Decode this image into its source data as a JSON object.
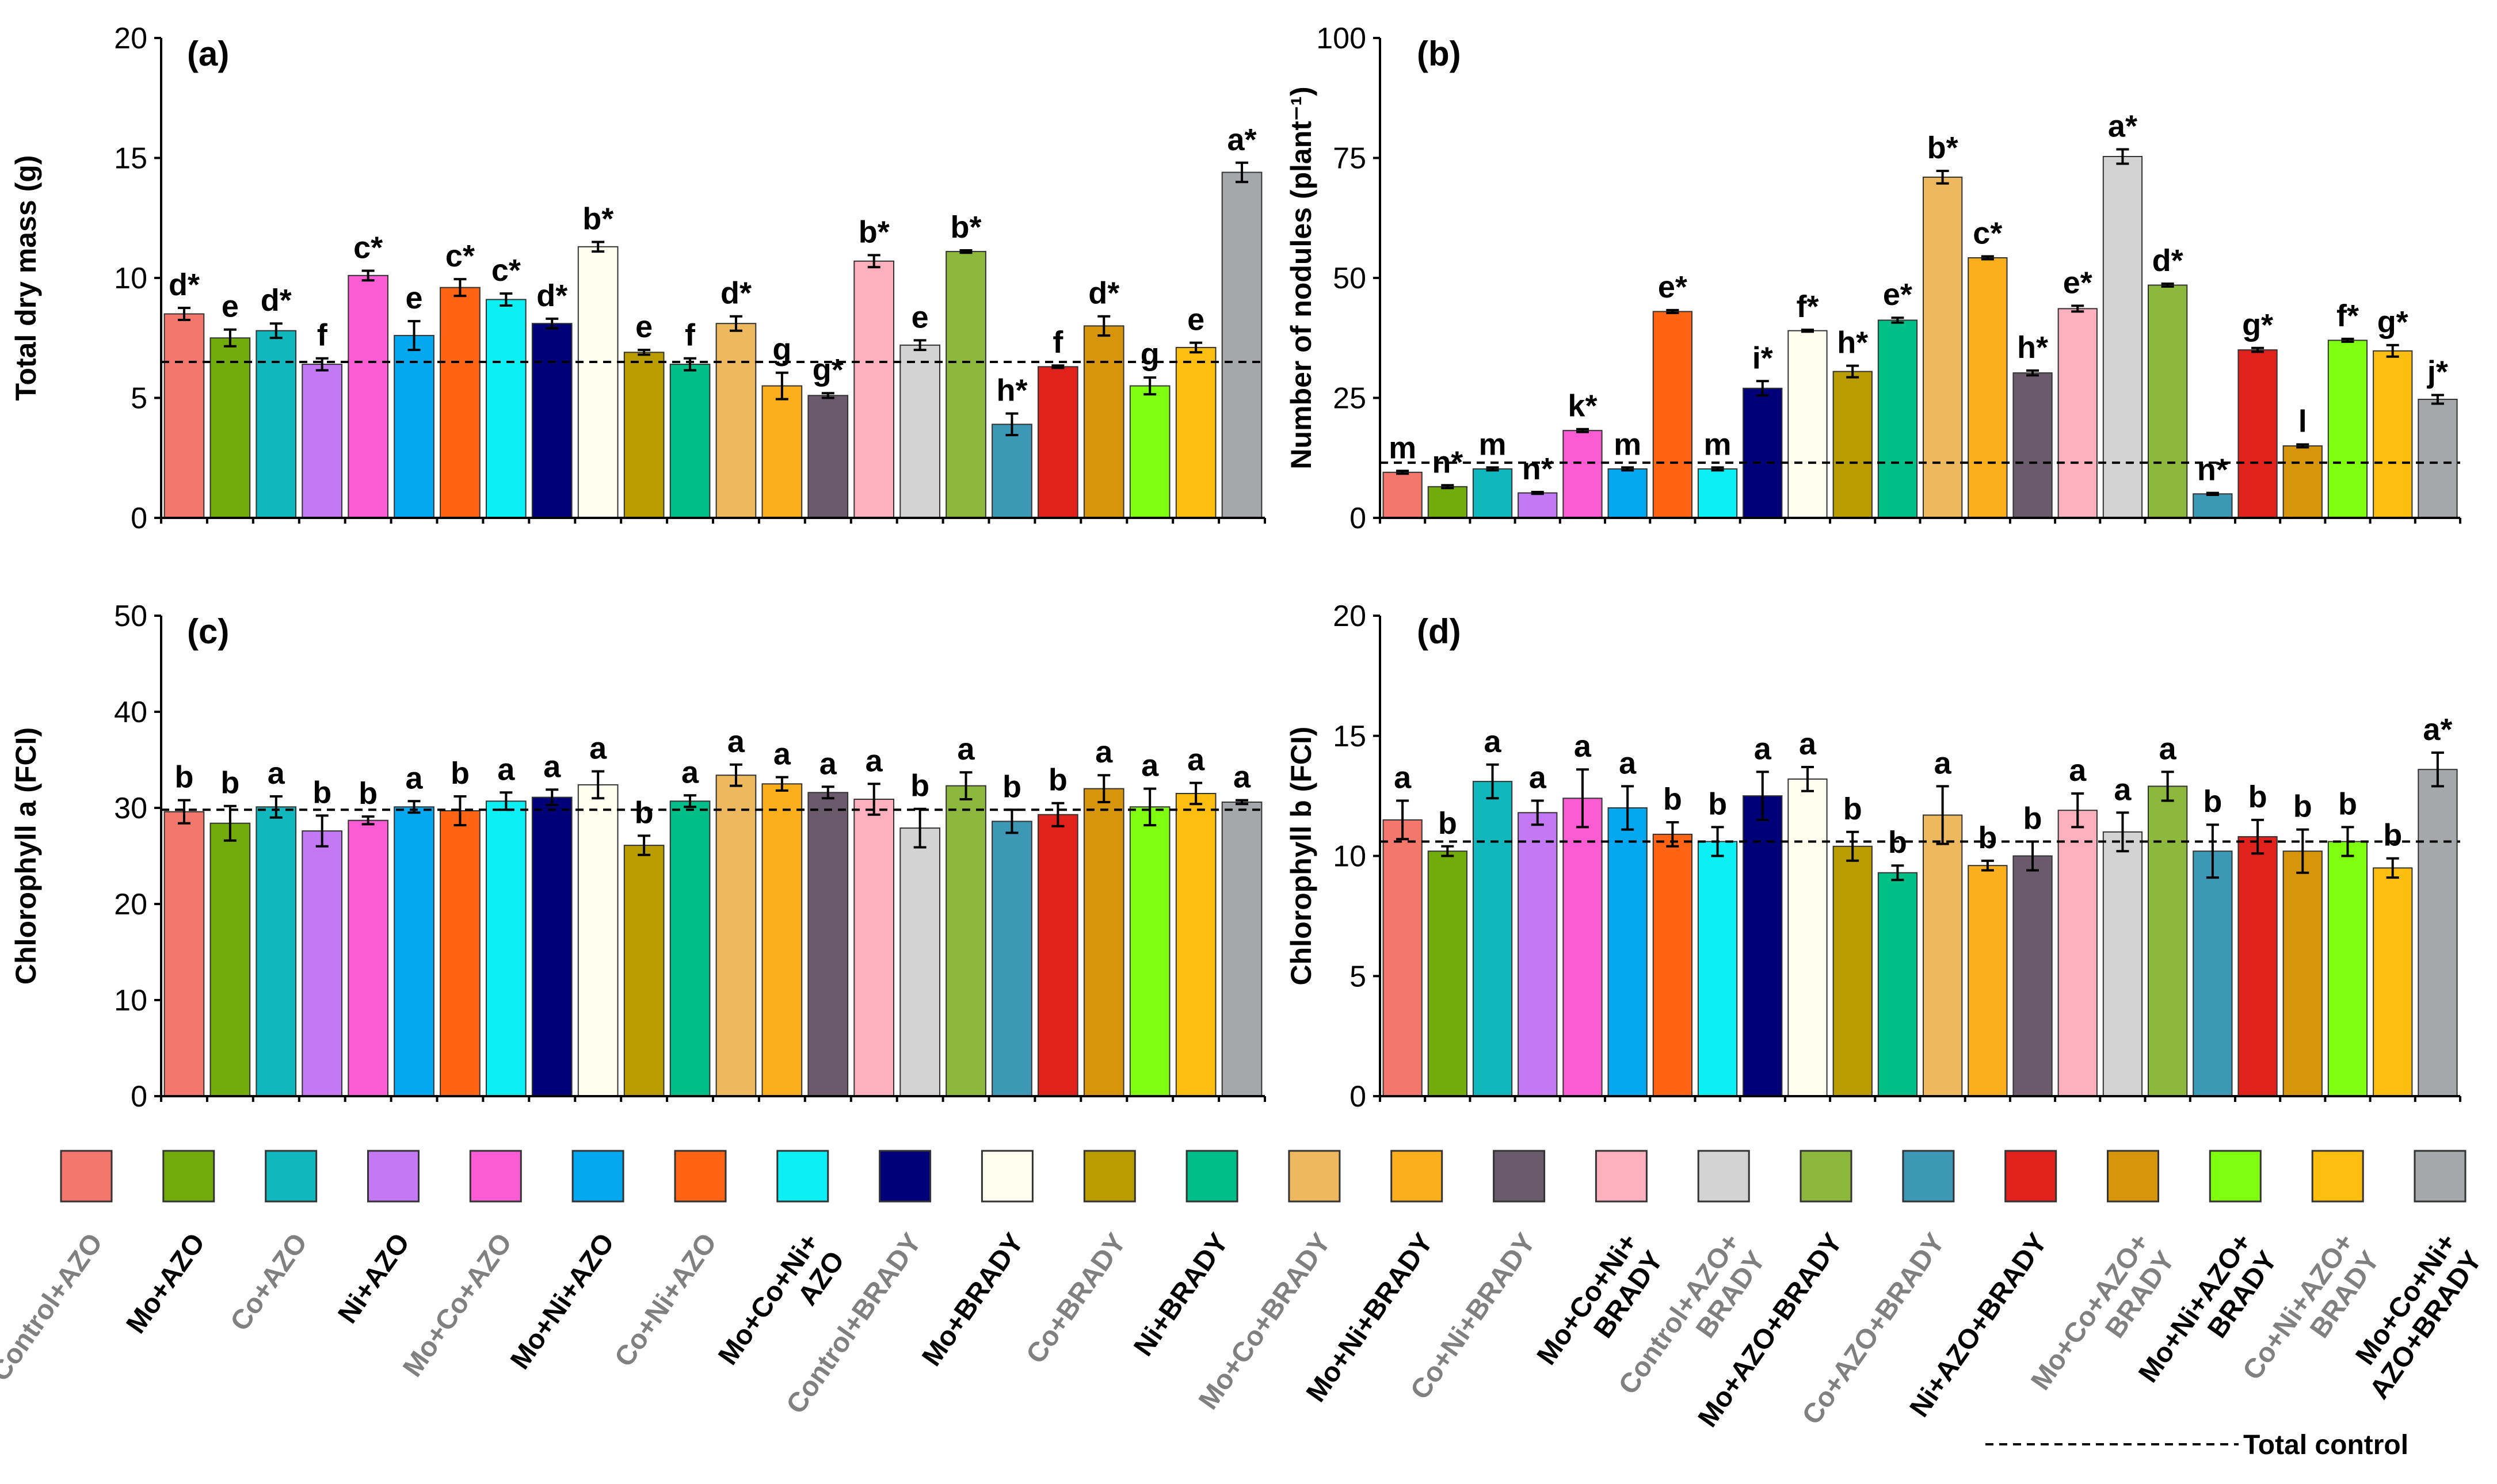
{
  "categories": [
    "Control+AZO",
    "Mo+AZO",
    "Co+AZO",
    "Ni+AZO",
    "Mo+Co+AZO",
    "Mo+Ni+AZO",
    "Co+Ni+AZO",
    "Mo+Co+Ni+ AZO",
    "Control+BRADY",
    "Mo+BRADY",
    "Co+BRADY",
    "Ni+BRADY",
    "Mo+Co+BRADY",
    "Mo+Ni+BRADY",
    "Co+Ni+BRADY",
    "Mo+Co+Ni+ BRADY",
    "Control+AZO+ BRADY",
    "Mo+AZO+BRADY",
    "Co+AZO+BRADY",
    "Ni+AZO+BRADY",
    "Mo+Co+AZO+ BRADY",
    "Mo+Ni+AZO+ BRADY",
    "Co+Ni+AZO+ BRADY",
    "Mo+Co+Ni+ AZO+BRADY"
  ],
  "legend_label_colors": [
    "#808080",
    "#000000",
    "#808080",
    "#000000",
    "#808080",
    "#000000",
    "#808080",
    "#000000",
    "#808080",
    "#000000",
    "#808080",
    "#000000",
    "#808080",
    "#000000",
    "#808080",
    "#000000",
    "#808080",
    "#000000",
    "#808080",
    "#000000",
    "#808080",
    "#000000",
    "#808080",
    "#000000"
  ],
  "bar_colors": [
    "#F4776E",
    "#72AC0C",
    "#10B8BE",
    "#C479F4",
    "#FB5CD4",
    "#03A8F0",
    "#FF6415",
    "#0CEFF4",
    "#000078",
    "#FFFFF0",
    "#B89C00",
    "#00BE88",
    "#EDB85E",
    "#FCAF1C",
    "#6A5A6C",
    "#FFB0BE",
    "#D3D3D3",
    "#8DB83E",
    "#3D98B5",
    "#E0211C",
    "#D6950B",
    "#80FE10",
    "#FDBE10",
    "#A5A7AA"
  ],
  "reference_legend": {
    "label": "Total control"
  },
  "chart_data": [
    {
      "type": "bar",
      "panel": "(a)",
      "ylabel": "Total dry mass (g)",
      "ylim": [
        0,
        20
      ],
      "yticks": [
        "0",
        "5",
        "10",
        "15",
        "20"
      ],
      "ytick_values": [
        0,
        5,
        10,
        15,
        20
      ],
      "reference_value": 6.5,
      "values": [
        8.5,
        7.5,
        7.8,
        6.4,
        10.1,
        7.6,
        9.6,
        9.1,
        8.1,
        11.3,
        6.9,
        6.4,
        8.1,
        5.5,
        5.1,
        10.7,
        7.2,
        11.1,
        3.9,
        6.3,
        8.0,
        5.5,
        7.1,
        14.4
      ],
      "errors": [
        0.25,
        0.35,
        0.3,
        0.25,
        0.2,
        0.6,
        0.35,
        0.25,
        0.2,
        0.2,
        0.1,
        0.25,
        0.3,
        0.55,
        0.1,
        0.25,
        0.2,
        0.05,
        0.45,
        0.05,
        0.4,
        0.35,
        0.2,
        0.4
      ],
      "letters": [
        "d*",
        "e",
        "d*",
        "f",
        "c*",
        "e",
        "c*",
        "c*",
        "d*",
        "b*",
        "e",
        "f",
        "d*",
        "g",
        "g*",
        "b*",
        "e",
        "b*",
        "h*",
        "f",
        "d*",
        "g",
        "e",
        "a*"
      ]
    },
    {
      "type": "bar",
      "panel": "(b)",
      "ylabel": "Number of nodules (plant⁻¹)",
      "ylim": [
        0,
        100
      ],
      "yticks": [
        "0",
        "25",
        "50",
        "75",
        "100"
      ],
      "ytick_values": [
        0,
        25,
        50,
        75,
        100
      ],
      "reference_value": 11.5,
      "values": [
        9.5,
        6.5,
        10.2,
        5.2,
        18.2,
        10.2,
        43,
        10.2,
        27,
        39,
        30.5,
        41.2,
        71,
        54.2,
        30.2,
        43.6,
        75.3,
        48.5,
        5,
        35,
        15,
        37,
        34.8,
        24.7
      ],
      "errors": [
        0.3,
        0.3,
        0.3,
        0.2,
        0.3,
        0.3,
        0.3,
        0.3,
        1.5,
        0.2,
        1.2,
        0.5,
        1.3,
        0.3,
        0.5,
        0.6,
        1.5,
        0.3,
        0.2,
        0.4,
        0.3,
        0.3,
        1.2,
        0.9
      ],
      "letters": [
        "m",
        "n*",
        "m",
        "n*",
        "k*",
        "m",
        "e*",
        "m",
        "i*",
        "f*",
        "h*",
        "e*",
        "b*",
        "c*",
        "h*",
        "e*",
        "a*",
        "d*",
        "n*",
        "g*",
        "l",
        "f*",
        "g*",
        "j*"
      ]
    },
    {
      "type": "bar",
      "panel": "(c)",
      "ylabel": "Chlorophyll a (FCI)",
      "ylim": [
        0,
        50
      ],
      "yticks": [
        "0",
        "10",
        "20",
        "30",
        "40",
        "50"
      ],
      "ytick_values": [
        0,
        10,
        20,
        30,
        40,
        50
      ],
      "reference_value": 29.8,
      "values": [
        29.6,
        28.4,
        30.1,
        27.6,
        28.7,
        30.1,
        29.7,
        30.7,
        31.1,
        32.4,
        26.1,
        30.7,
        33.4,
        32.5,
        31.6,
        30.9,
        27.9,
        32.3,
        28.6,
        29.3,
        32,
        30.1,
        31.5,
        30.6
      ],
      "errors": [
        1.2,
        1.8,
        1.1,
        1.6,
        0.4,
        0.6,
        1.5,
        0.9,
        0.8,
        1.4,
        1,
        0.6,
        1.1,
        0.7,
        0.6,
        1.6,
        2,
        1.4,
        1.2,
        1.2,
        1.4,
        1.9,
        1.1,
        0.2
      ],
      "letters": [
        "b",
        "b",
        "a",
        "b",
        "b",
        "a",
        "b",
        "a",
        "a",
        "a",
        "b",
        "a",
        "a",
        "a",
        "a",
        "a",
        "b",
        "a",
        "b",
        "b",
        "a",
        "a",
        "a",
        "a"
      ]
    },
    {
      "type": "bar",
      "panel": "(d)",
      "ylabel": "Chlorophyll b (FCI)",
      "ylim": [
        0,
        20
      ],
      "yticks": [
        "0",
        "5",
        "10",
        "15",
        "20"
      ],
      "ytick_values": [
        0,
        5,
        10,
        15,
        20
      ],
      "reference_value": 10.6,
      "values": [
        11.5,
        10.2,
        13.1,
        11.8,
        12.4,
        12,
        10.9,
        10.6,
        12.5,
        13.2,
        10.4,
        9.3,
        11.7,
        9.6,
        10,
        11.9,
        11,
        12.9,
        10.2,
        10.8,
        10.2,
        10.6,
        9.5,
        13.6
      ],
      "errors": [
        0.8,
        0.2,
        0.7,
        0.5,
        1.2,
        0.9,
        0.5,
        0.6,
        1,
        0.5,
        0.6,
        0.3,
        1.2,
        0.2,
        0.6,
        0.7,
        0.8,
        0.6,
        1.1,
        0.7,
        0.9,
        0.6,
        0.4,
        0.7
      ],
      "letters": [
        "a",
        "b",
        "a",
        "a",
        "a",
        "a",
        "b",
        "b",
        "a",
        "a",
        "b",
        "b",
        "a",
        "b",
        "b",
        "a",
        "a",
        "a",
        "b",
        "b",
        "b",
        "b",
        "b",
        "a*"
      ]
    }
  ]
}
